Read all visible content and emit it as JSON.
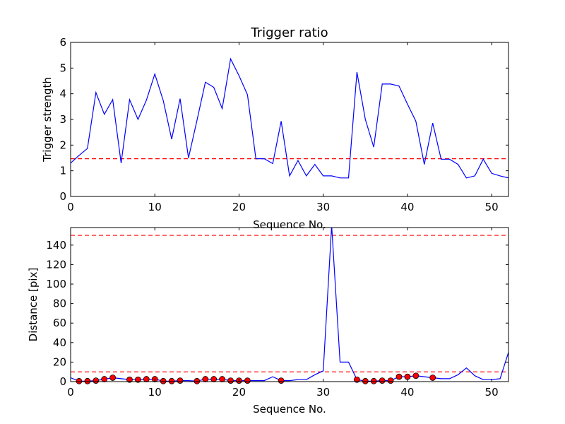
{
  "chart_data": [
    {
      "type": "line",
      "title": "Trigger ratio",
      "xlabel": "Sequence No.",
      "ylabel": "Trigger strength",
      "xlim": [
        0,
        52
      ],
      "ylim": [
        0,
        6
      ],
      "xticks": [
        0,
        10,
        20,
        30,
        40,
        50
      ],
      "yticks": [
        0,
        1,
        2,
        3,
        4,
        5,
        6
      ],
      "grid": false,
      "series": [
        {
          "color": "#0000ff",
          "x": [
            0,
            1,
            2,
            3,
            4,
            5,
            6,
            7,
            8,
            9,
            10,
            11,
            12,
            13,
            14,
            15,
            16,
            17,
            18,
            19,
            20,
            21,
            22,
            23,
            24,
            25,
            26,
            27,
            28,
            29,
            30,
            31,
            32,
            33,
            34,
            35,
            36,
            37,
            38,
            39,
            40,
            41,
            42,
            43,
            44,
            45,
            46,
            47,
            48,
            49,
            50,
            51,
            52
          ],
          "y": [
            1.3,
            1.6,
            1.87,
            4.05,
            3.2,
            3.77,
            1.3,
            3.77,
            3.0,
            3.75,
            4.77,
            3.73,
            2.23,
            3.81,
            1.5,
            2.95,
            4.45,
            4.25,
            3.42,
            5.36,
            4.7,
            3.96,
            1.47,
            1.47,
            1.28,
            2.93,
            0.8,
            1.4,
            0.8,
            1.25,
            0.8,
            0.8,
            0.72,
            0.72,
            4.84,
            3.0,
            1.92,
            4.38,
            4.38,
            4.3,
            3.6,
            2.93,
            1.25,
            2.86,
            1.45,
            1.45,
            1.25,
            0.72,
            0.8,
            1.45,
            0.9,
            0.8,
            0.72
          ]
        }
      ],
      "hlines": [
        {
          "y": 1.47,
          "style": "dashed",
          "color": "#ff0000"
        }
      ]
    },
    {
      "type": "line",
      "title": "",
      "xlabel": "Sequence No.",
      "ylabel": "Distance [pix]",
      "xlim": [
        0,
        52
      ],
      "ylim": [
        0,
        158
      ],
      "xticks": [
        0,
        10,
        20,
        30,
        40,
        50
      ],
      "yticks": [
        0,
        20,
        40,
        60,
        80,
        100,
        120,
        140
      ],
      "grid": false,
      "series": [
        {
          "color": "#0000ff",
          "x": [
            0,
            1,
            2,
            3,
            4,
            5,
            6,
            7,
            8,
            9,
            10,
            11,
            12,
            13,
            14,
            15,
            16,
            17,
            18,
            19,
            20,
            21,
            22,
            23,
            24,
            25,
            26,
            27,
            28,
            29,
            30,
            31,
            32,
            33,
            34,
            35,
            36,
            37,
            38,
            39,
            40,
            41,
            42,
            43,
            44,
            45,
            46,
            47,
            48,
            49,
            50,
            51,
            52
          ],
          "y": [
            4,
            0.5,
            0.5,
            1,
            2.5,
            4,
            3,
            2,
            2,
            2.5,
            2.5,
            0.5,
            0.5,
            1,
            1,
            0.5,
            2.5,
            2.5,
            2.5,
            1,
            1,
            1,
            1,
            1,
            5,
            1,
            1,
            2,
            2,
            7,
            11,
            160,
            20,
            20,
            2,
            0.5,
            0.5,
            1,
            1,
            5,
            5,
            6,
            5,
            4,
            3,
            3,
            7,
            14,
            6,
            2,
            2,
            3,
            30
          ]
        }
      ],
      "markers": {
        "color": "#ff0000",
        "x": [
          1,
          2,
          3,
          4,
          5,
          7,
          8,
          9,
          10,
          11,
          12,
          13,
          15,
          16,
          17,
          18,
          19,
          20,
          21,
          25,
          34,
          35,
          36,
          37,
          38,
          39,
          40,
          41,
          43
        ],
        "y": [
          0.5,
          0.5,
          1,
          2.5,
          4,
          2,
          2,
          2.5,
          2.5,
          0.5,
          0.5,
          1,
          0.5,
          2.5,
          2.5,
          2.5,
          1,
          1,
          1,
          1,
          2,
          0.5,
          0.5,
          1,
          1,
          5,
          5,
          6,
          4
        ]
      },
      "hlines": [
        {
          "y": 10,
          "style": "dashed",
          "color": "#ff0000"
        },
        {
          "y": 150,
          "style": "dashed",
          "color": "#ff0000"
        }
      ]
    }
  ]
}
